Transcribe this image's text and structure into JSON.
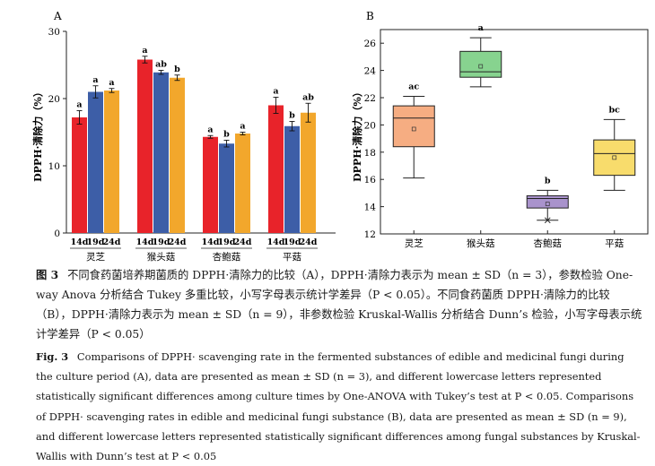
{
  "panel_a": {
    "label": "A",
    "ylabel": "DPPH·清除力（%）",
    "ytick_labels": [
      "0",
      "10",
      "20",
      "30"
    ],
    "chart_data": {
      "type": "bar",
      "ylim": [
        0,
        30
      ],
      "yticks": [
        0,
        10,
        20,
        30
      ],
      "groups": [
        {
          "name": "灵芝",
          "labels": [
            "14d",
            "19d",
            "24d"
          ],
          "values": [
            17.2,
            21.0,
            21.2
          ],
          "errors": [
            1.0,
            0.9,
            0.3
          ],
          "letters": [
            "a",
            "a",
            "a"
          ]
        },
        {
          "name": "猴头菇",
          "labels": [
            "14d",
            "19d",
            "24d"
          ],
          "values": [
            25.8,
            23.9,
            23.1
          ],
          "errors": [
            0.5,
            0.3,
            0.4
          ],
          "letters": [
            "a",
            "ab",
            "b"
          ]
        },
        {
          "name": "杏鲍菇",
          "labels": [
            "14d",
            "19d",
            "24d"
          ],
          "values": [
            14.3,
            13.3,
            14.8
          ],
          "errors": [
            0.2,
            0.5,
            0.2
          ],
          "letters": [
            "a",
            "b",
            "a"
          ]
        },
        {
          "name": "平菇",
          "labels": [
            "14d",
            "19d",
            "24d"
          ],
          "values": [
            19.0,
            15.9,
            17.9
          ],
          "errors": [
            1.2,
            0.7,
            1.4
          ],
          "letters": [
            "a",
            "b",
            "ab"
          ]
        }
      ],
      "colors": [
        "#e8232a",
        "#3d5ea7",
        "#f2a72c"
      ]
    }
  },
  "panel_b": {
    "label": "B",
    "ylabel": "DPPH·清除力（%）",
    "chart_data": {
      "type": "box",
      "ylim": [
        12,
        27
      ],
      "yticks": [
        12,
        14,
        16,
        18,
        20,
        22,
        24,
        26
      ],
      "categories": [
        "灵芝",
        "猴头菇",
        "杏鲍菇",
        "平菇"
      ],
      "boxes": [
        {
          "min": 16.1,
          "q1": 18.4,
          "median": 20.5,
          "q3": 21.4,
          "max": 22.1,
          "mean": 19.7,
          "outliers": [],
          "letter": "ac",
          "color": "#f6ad82"
        },
        {
          "min": 22.8,
          "q1": 23.5,
          "median": 23.9,
          "q3": 25.4,
          "max": 26.4,
          "mean": 24.3,
          "outliers": [],
          "letter": "a",
          "color": "#87d38f"
        },
        {
          "min": 13.0,
          "q1": 13.9,
          "median": 14.6,
          "q3": 14.8,
          "max": 15.2,
          "mean": 14.2,
          "outliers": [
            13.0
          ],
          "letter": "b",
          "color": "#a993cc"
        },
        {
          "min": 15.2,
          "q1": 16.3,
          "median": 17.9,
          "q3": 18.9,
          "max": 20.4,
          "mean": 17.6,
          "outliers": [],
          "letter": "bc",
          "color": "#f8dc6c"
        }
      ]
    }
  },
  "caption_cn": {
    "label": "图 3",
    "text": "不同食药菌培养期菌质的 DPPH·清除力的比较（A），DPPH·清除力表示为 mean ± SD（n = 3），参数检验 One-way Anova 分析结合 Tukey 多重比较，小写字母表示统计学差异（P < 0.05）。不同食药菌质 DPPH·清除力的比较（B），DPPH·清除力表示为 mean ± SD（n = 9），非参数检验 Kruskal-Wallis 分析结合 Dunn’s 检验，小写字母表示统计学差异（P < 0.05）"
  },
  "caption_en": {
    "label": "Fig. 3",
    "text": "Comparisons of DPPH· scavenging rate in the fermented substances of edible and medicinal fungi during the culture period (A), data are presented as mean ± SD (n = 3), and different lowercase letters represented statistically significant differences among culture times by One-ANOVA with Tukey’s test at P < 0.05. Comparisons of DPPH· scavenging rates in edible and medicinal fungi substance (B), data are presented as mean ± SD (n = 9), and different lowercase letters represented statistically significant differences among fungal substances by Kruskal-Wallis with Dunn’s test at P < 0.05"
  }
}
